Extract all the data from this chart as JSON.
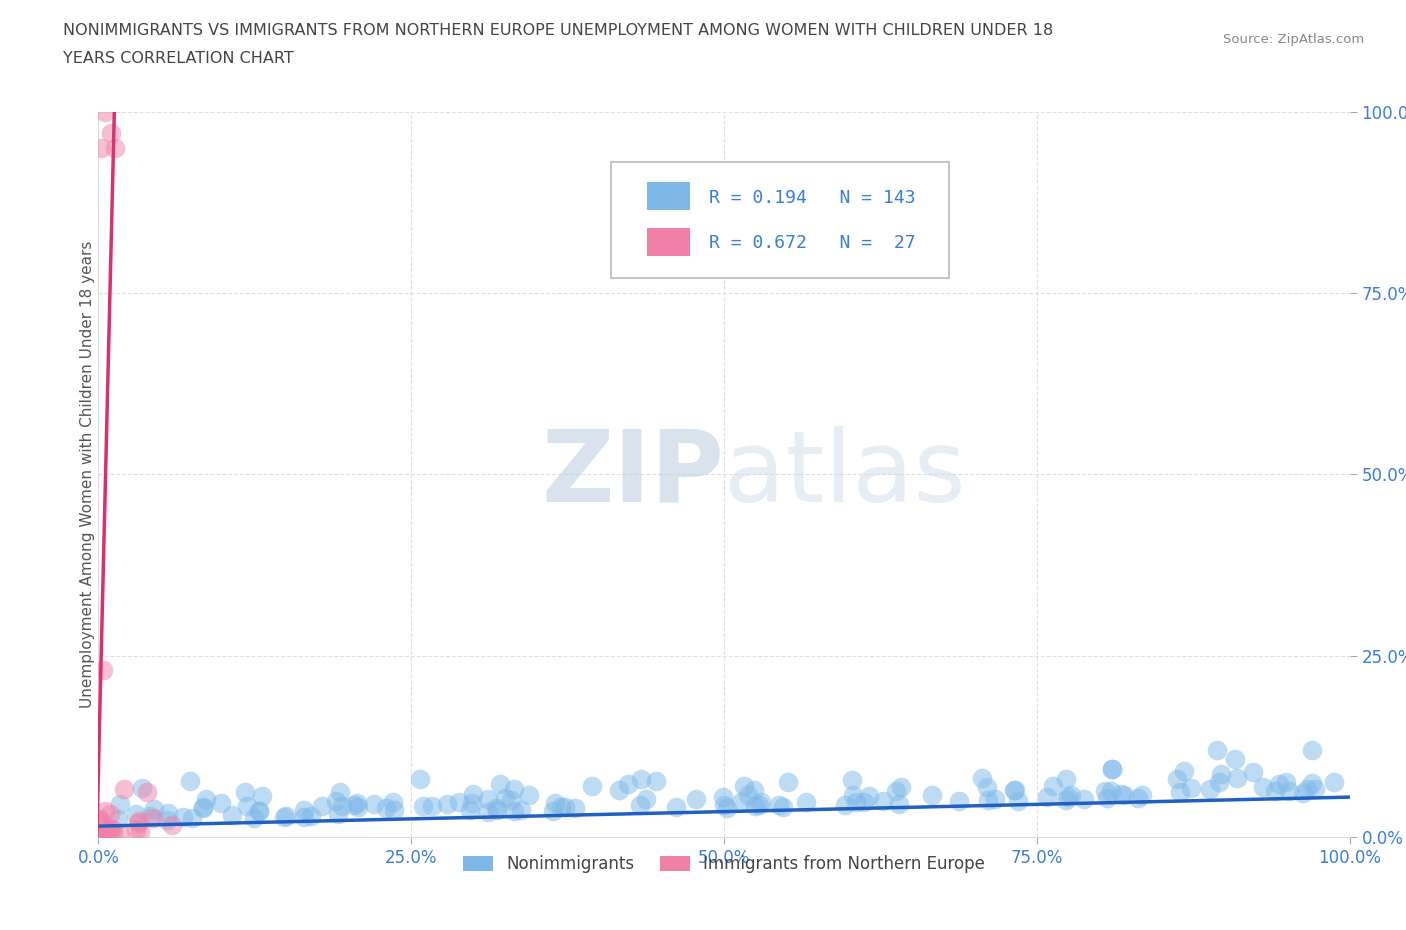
{
  "title_line1": "NONIMMIGRANTS VS IMMIGRANTS FROM NORTHERN EUROPE UNEMPLOYMENT AMONG WOMEN WITH CHILDREN UNDER 18",
  "title_line2": "YEARS CORRELATION CHART",
  "source_text": "Source: ZipAtlas.com",
  "ylabel": "Unemployment Among Women with Children Under 18 years",
  "nonimmigrant_color": "#7DB8E8",
  "immigrant_color": "#F080A8",
  "nonimmigrant_line_color": "#2060C0",
  "immigrant_line_color": "#D83070",
  "watermark_zip": "ZIP",
  "watermark_atlas": "atlas",
  "legend_r1": "R = 0.194",
  "legend_n1": "N = 143",
  "legend_r2": "R = 0.672",
  "legend_n2": "N =  27",
  "r_color": "#3B7DD8",
  "background_color": "#FFFFFF",
  "grid_color": "#CCCCCC",
  "title_color": "#444444",
  "ylabel_color": "#555555",
  "tick_color": "#3B7DD8",
  "source_color": "#888888",
  "xlim": [
    0.0,
    1.0
  ],
  "ylim": [
    0.0,
    1.0
  ],
  "xticks": [
    0.0,
    0.25,
    0.5,
    0.75,
    1.0
  ],
  "yticks": [
    0.0,
    0.25,
    0.5,
    0.75,
    1.0
  ],
  "xticklabels": [
    "0.0%",
    "25.0%",
    "50.0%",
    "75.0%",
    "100.0%"
  ],
  "yticklabels": [
    "0.0%",
    "25.0%",
    "50.0%",
    "75.0%",
    "100.0%"
  ],
  "nonimmigrant_R": 0.194,
  "nonimmigrant_N": 143,
  "immigrant_R": 0.672,
  "immigrant_N": 27,
  "legend_label_1": "Nonimmigrants",
  "legend_label_2": "Immigrants from Northern Europe"
}
